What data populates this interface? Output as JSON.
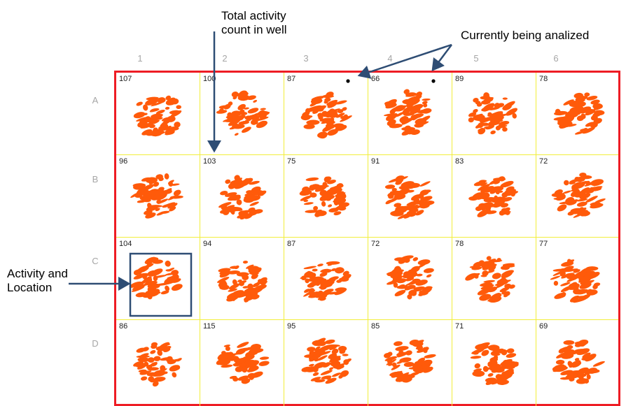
{
  "columns": [
    "1",
    "2",
    "3",
    "4",
    "5",
    "6"
  ],
  "rows": [
    "A",
    "B",
    "C",
    "D"
  ],
  "wells": [
    [
      "107",
      "100",
      "87",
      "66",
      "89",
      "78"
    ],
    [
      "96",
      "103",
      "75",
      "91",
      "83",
      "72"
    ],
    [
      "104",
      "94",
      "87",
      "72",
      "78",
      "77"
    ],
    [
      "86",
      "115",
      "95",
      "85",
      "71",
      "69"
    ]
  ],
  "annotations": {
    "total_activity_line1": "Total activity",
    "total_activity_line2": "count in well",
    "currently_analized": "Currently being analized",
    "activity_location_line1": "Activity and",
    "activity_location_line2": "Location"
  },
  "colors": {
    "plate_border": "#ee1c24",
    "grid": "#f2ee3b",
    "activity": "#ff5a0a",
    "annotation_arrow": "#2e4d74",
    "axis_label": "#a6a6a6"
  }
}
